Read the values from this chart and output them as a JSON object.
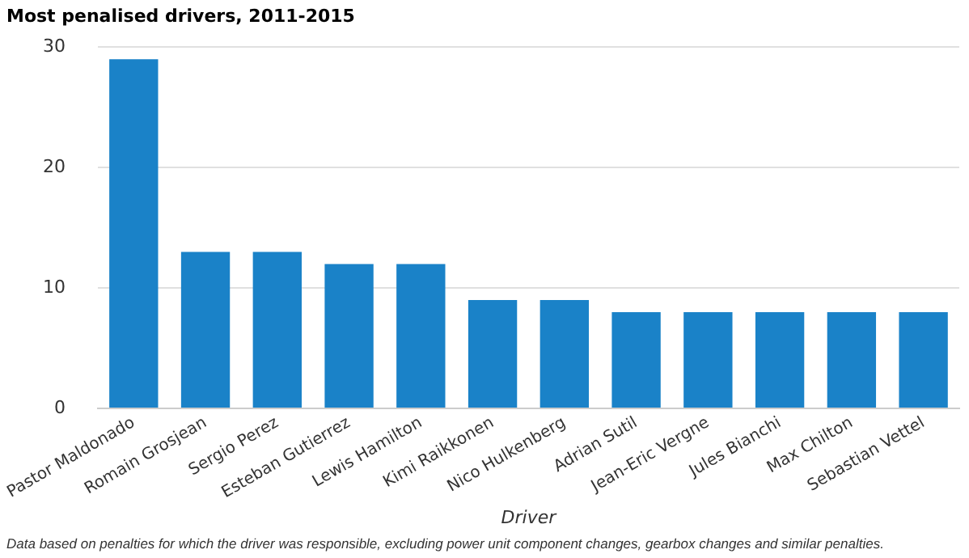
{
  "chart_data": {
    "type": "bar",
    "title": "Most penalised drivers, 2011-2015",
    "categories": [
      "Pastor Maldonado",
      "Romain Grosjean",
      "Sergio Perez",
      "Esteban Gutierrez",
      "Lewis Hamilton",
      "Kimi Raikkonen",
      "Nico Hulkenberg",
      "Adrian Sutil",
      "Jean-Eric Vergne",
      "Jules Bianchi",
      "Max Chilton",
      "Sebastian Vettel"
    ],
    "values": [
      29,
      13,
      13,
      12,
      12,
      9,
      9,
      8,
      8,
      8,
      8,
      8
    ],
    "color": "#1a82c8",
    "xlabel": "Driver",
    "ylim": [
      0,
      30
    ],
    "yticks": [
      0,
      10,
      20,
      30
    ],
    "grid": "y",
    "annotations": [
      "Data based on penalties for which the driver was responsible, excluding power unit component changes, gearbox changes and similar penalties."
    ]
  }
}
